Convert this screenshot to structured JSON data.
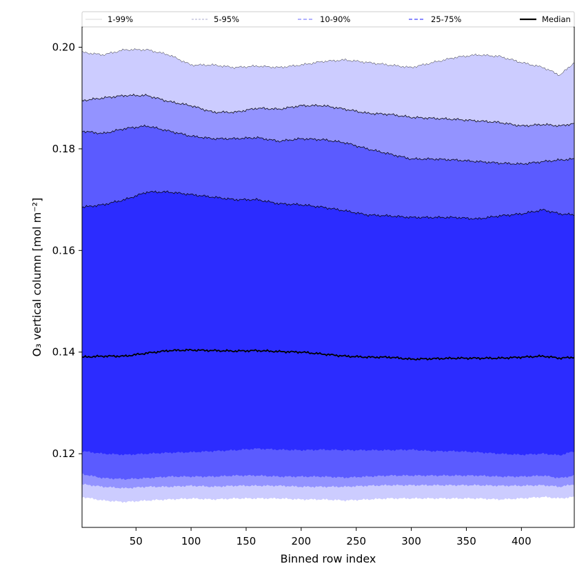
{
  "chart_data": {
    "type": "area",
    "xlabel": "Binned row index",
    "ylabel": "O₃ vertical column [mol m⁻²]",
    "xlim": [
      1,
      448
    ],
    "ylim": [
      0.1055,
      0.204
    ],
    "x_ticks": [
      50,
      100,
      150,
      200,
      250,
      300,
      350,
      400
    ],
    "y_ticks": [
      0.12,
      0.14,
      0.16,
      0.18,
      0.2
    ],
    "y_tick_labels": [
      "0.12",
      "0.14",
      "0.16",
      "0.18",
      "0.20"
    ],
    "legend_placement": "top",
    "x": [
      1,
      20,
      40,
      60,
      80,
      100,
      120,
      140,
      160,
      180,
      200,
      220,
      240,
      260,
      280,
      300,
      320,
      340,
      360,
      380,
      400,
      420,
      435,
      448
    ],
    "bands": [
      {
        "name": "1-99%",
        "color": "#ccccff",
        "upper": [
          0.199,
          0.1985,
          0.1995,
          0.1995,
          0.1985,
          0.1965,
          0.1965,
          0.196,
          0.1963,
          0.196,
          0.1965,
          0.1972,
          0.1975,
          0.197,
          0.1965,
          0.196,
          0.197,
          0.198,
          0.1985,
          0.1982,
          0.197,
          0.196,
          0.1945,
          0.197
        ],
        "lower": [
          0.1115,
          0.1108,
          0.1105,
          0.1108,
          0.111,
          0.1112,
          0.111,
          0.1112,
          0.1112,
          0.1112,
          0.111,
          0.111,
          0.1108,
          0.111,
          0.1112,
          0.1112,
          0.1112,
          0.1112,
          0.1112,
          0.111,
          0.1112,
          0.1115,
          0.1112,
          0.1115
        ]
      },
      {
        "name": "5-95%",
        "color": "#9393ff",
        "upper": [
          0.1895,
          0.19,
          0.1905,
          0.1905,
          0.1893,
          0.1885,
          0.1872,
          0.1872,
          0.188,
          0.1878,
          0.1885,
          0.1885,
          0.1878,
          0.187,
          0.1868,
          0.1862,
          0.186,
          0.1858,
          0.1855,
          0.1852,
          0.1845,
          0.1848,
          0.1845,
          0.185
        ],
        "lower": [
          0.114,
          0.1135,
          0.1132,
          0.1135,
          0.1135,
          0.1137,
          0.1135,
          0.1137,
          0.1137,
          0.1137,
          0.1135,
          0.1135,
          0.1135,
          0.1137,
          0.1138,
          0.1138,
          0.1138,
          0.1138,
          0.1138,
          0.1137,
          0.1137,
          0.1138,
          0.1135,
          0.114
        ]
      },
      {
        "name": "10-90%",
        "color": "#5b5bff",
        "upper": [
          0.1835,
          0.183,
          0.184,
          0.1845,
          0.1835,
          0.1825,
          0.182,
          0.182,
          0.1822,
          0.1815,
          0.182,
          0.1818,
          0.1812,
          0.18,
          0.179,
          0.178,
          0.178,
          0.1778,
          0.1775,
          0.1772,
          0.177,
          0.1775,
          0.1778,
          0.178
        ],
        "lower": [
          0.116,
          0.1152,
          0.115,
          0.1152,
          0.1155,
          0.1155,
          0.1155,
          0.1157,
          0.1157,
          0.1155,
          0.1155,
          0.1155,
          0.1153,
          0.1155,
          0.1157,
          0.1157,
          0.1157,
          0.1157,
          0.1157,
          0.1155,
          0.1155,
          0.1157,
          0.1152,
          0.1157
        ]
      },
      {
        "name": "25-75%",
        "color": "#2c2cff",
        "upper": [
          0.1685,
          0.169,
          0.17,
          0.1715,
          0.1715,
          0.171,
          0.1705,
          0.17,
          0.17,
          0.1692,
          0.169,
          0.1685,
          0.1678,
          0.167,
          0.1668,
          0.1665,
          0.1665,
          0.1665,
          0.1662,
          0.1668,
          0.1672,
          0.168,
          0.1672,
          0.167
        ],
        "lower": [
          0.1205,
          0.12,
          0.1198,
          0.12,
          0.1202,
          0.1203,
          0.1205,
          0.1207,
          0.121,
          0.1208,
          0.1207,
          0.1208,
          0.1207,
          0.1207,
          0.1207,
          0.1208,
          0.1205,
          0.1205,
          0.1203,
          0.12,
          0.1198,
          0.12,
          0.1197,
          0.1205
        ]
      }
    ],
    "median": {
      "name": "Median",
      "color": "#000000",
      "values": [
        0.139,
        0.1392,
        0.1392,
        0.1398,
        0.1403,
        0.1404,
        0.1403,
        0.1402,
        0.1403,
        0.1401,
        0.14,
        0.1396,
        0.1392,
        0.139,
        0.139,
        0.1386,
        0.1387,
        0.1388,
        0.1388,
        0.1388,
        0.139,
        0.1392,
        0.1388,
        0.139
      ]
    },
    "legend": [
      {
        "label": "1-99%",
        "style": "solid-thin",
        "color": "#cccccc"
      },
      {
        "label": "5-95%",
        "style": "dashed-thin",
        "color": "#8f8fbf"
      },
      {
        "label": "10-90%",
        "style": "dashed",
        "color": "#8080ff"
      },
      {
        "label": "25-75%",
        "style": "dashed",
        "color": "#4040ff"
      },
      {
        "label": "Median",
        "style": "solid-thick",
        "color": "#000000"
      }
    ]
  }
}
